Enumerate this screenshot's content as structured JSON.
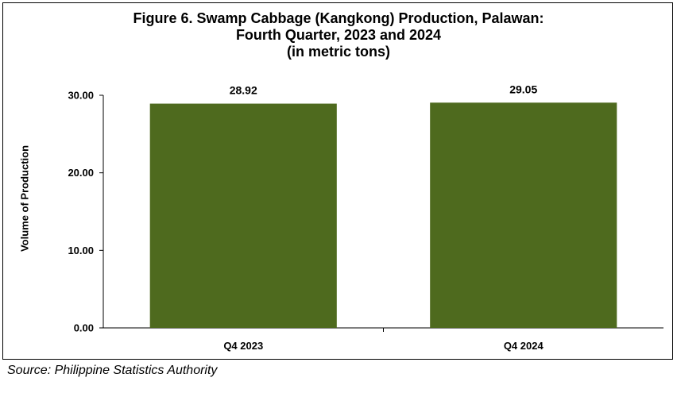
{
  "chart_data": {
    "type": "bar",
    "title_lines": [
      "Figure 6. Swamp Cabbage (Kangkong) Production, Palawan:",
      "Fourth Quarter, 2023 and 2024",
      "(in metric tons)"
    ],
    "ylabel": "Volume of Production",
    "xlabel": "",
    "categories": [
      "Q4 2023",
      "Q4 2024"
    ],
    "values": [
      28.92,
      29.05
    ],
    "value_labels": [
      "28.92",
      "29.05"
    ],
    "ylim": [
      0,
      30
    ],
    "yticks": [
      0,
      10,
      20,
      30
    ],
    "ytick_labels": [
      "0.00",
      "10.00",
      "20.00",
      "30.00"
    ],
    "bar_color": "#4e6a1e",
    "grid": false,
    "legend": "none"
  },
  "source": "Source: Philippine Statistics Authority"
}
